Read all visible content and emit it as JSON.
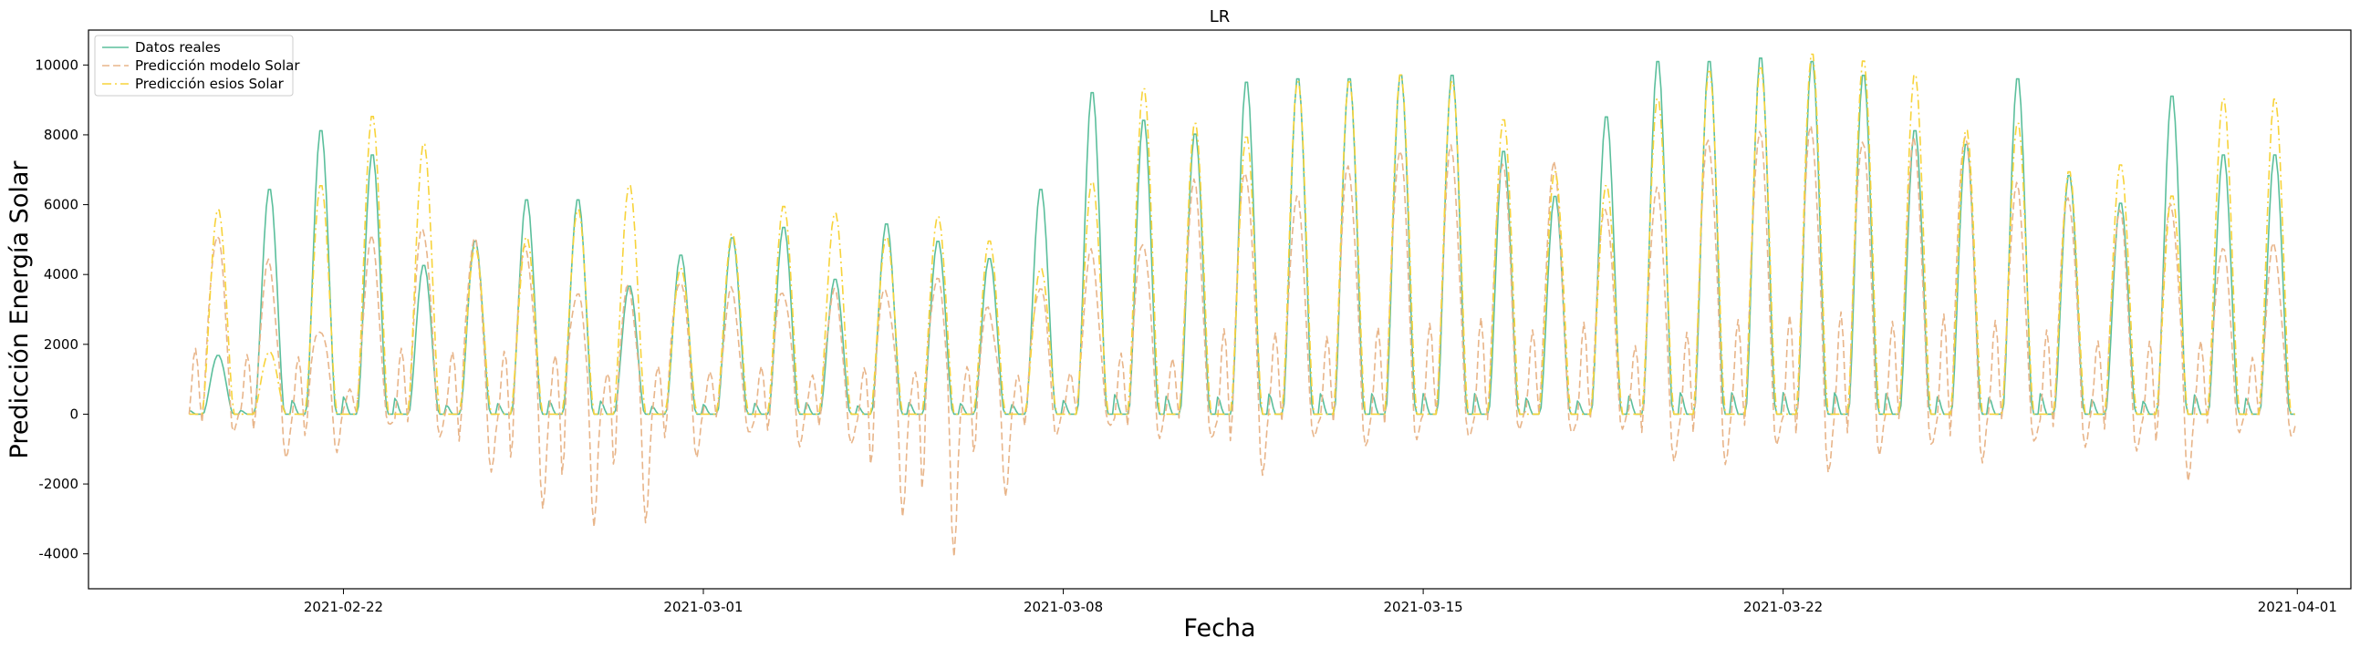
{
  "chart_data": {
    "type": "line",
    "title": "LR",
    "xlabel": "Fecha",
    "ylabel": "Predicción Energía Solar",
    "x_start": "2021-02-19T00:00",
    "x_end": "2021-03-31T23:00",
    "xlim": [
      "2021-02-17T01:00",
      "2021-04-02T01:00"
    ],
    "ylim": [
      -5000,
      11000
    ],
    "x_ticks": [
      "2021-02-22",
      "2021-03-01",
      "2021-03-08",
      "2021-03-15",
      "2021-03-22",
      "2021-04-01"
    ],
    "y_ticks": [
      -4000,
      -2000,
      0,
      2000,
      4000,
      6000,
      8000,
      10000
    ],
    "grid": false,
    "legend_position": "top-left",
    "series": [
      {
        "name": "Datos reales",
        "color": "#5bbf9c",
        "style": "solid",
        "daily_peaks": [
          1700,
          6500,
          8200,
          7500,
          4300,
          5000,
          6200,
          6200,
          3700,
          4600,
          5100,
          5400,
          3900,
          5500,
          5000,
          4500,
          6500,
          9300,
          8500,
          8100,
          9600,
          9700,
          9700,
          9800,
          9800,
          7600,
          6300,
          8600,
          10200,
          10200,
          10300,
          10200,
          9800,
          8200,
          7800,
          9700,
          6900,
          6100,
          9200,
          7500
        ]
      },
      {
        "name": "Predicción modelo Solar",
        "color": "#e8b58a",
        "style": "dashed",
        "daily_peaks": [
          5200,
          4300,
          2500,
          5000,
          5400,
          5000,
          4800,
          3500,
          3600,
          3900,
          3500,
          3600,
          3500,
          3600,
          3900,
          3000,
          3700,
          4600,
          5000,
          6600,
          7000,
          6200,
          7100,
          7600,
          7600,
          7300,
          7100,
          6000,
          6400,
          7900,
          8100,
          8200,
          7900,
          7800,
          8100,
          6500,
          6300,
          5800,
          6000,
          4800
        ],
        "daily_troughs": [
          -500,
          -1300,
          -1000,
          -400,
          -500,
          -1800,
          -2600,
          -3300,
          -3100,
          -1200,
          -600,
          -800,
          -1000,
          -2800,
          -4200,
          -2300,
          -600,
          -300,
          -600,
          -800,
          -1600,
          -800,
          -800,
          -800,
          -600,
          -400,
          -600,
          -300,
          -1500,
          -1300,
          -1000,
          -1600,
          -1200,
          -900,
          -1300,
          -900,
          -800,
          -1200,
          -1800,
          -600
        ]
      },
      {
        "name": "Predicción esios Solar",
        "color": "#f7d33a",
        "style": "dashdot",
        "daily_peaks": [
          5900,
          1800,
          6600,
          8600,
          7800,
          4800,
          5100,
          5900,
          6600,
          4200,
          5200,
          6000,
          5800,
          5100,
          5700,
          5000,
          4200,
          6700,
          9400,
          8400,
          8000,
          9600,
          9600,
          9800,
          9600,
          8500,
          7000,
          6600,
          9100,
          9900,
          10000,
          10400,
          10200,
          9800,
          8200,
          8400,
          7000,
          7200,
          6300,
          9100
        ]
      }
    ]
  }
}
